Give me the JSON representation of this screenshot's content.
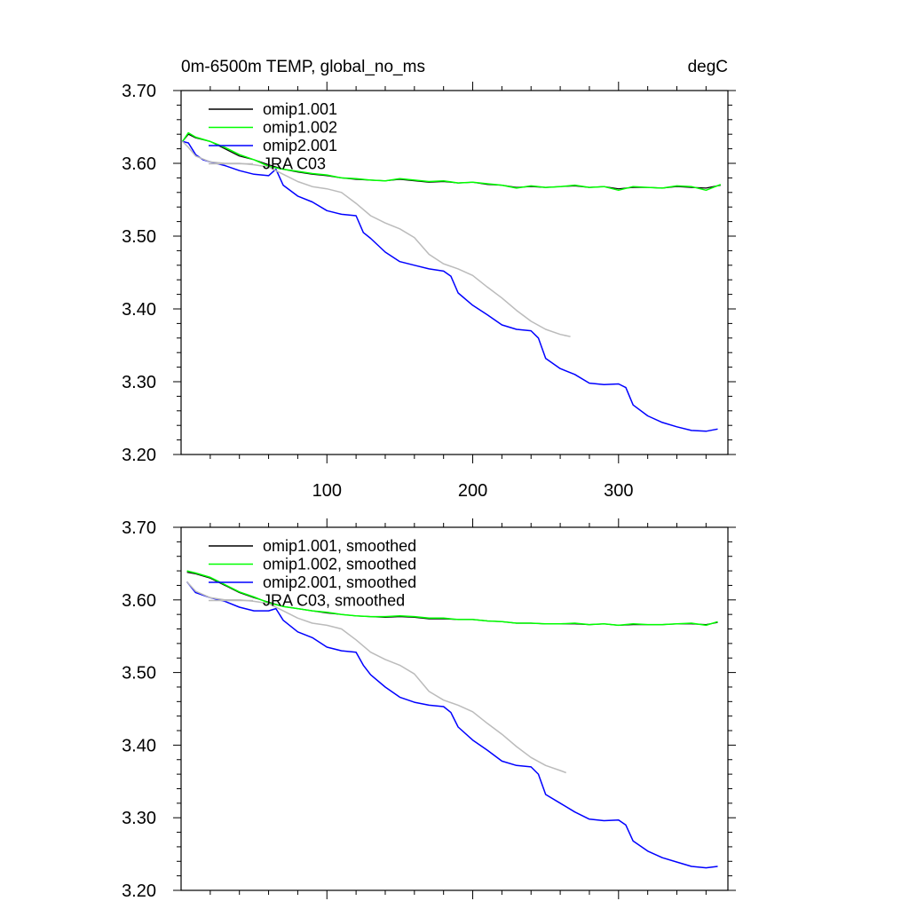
{
  "figure": {
    "title_left": "0m-6500m TEMP, global_no_ms",
    "title_right": "degC"
  },
  "chart_data": [
    {
      "type": "line",
      "title": "0m-6500m TEMP, global_no_ms",
      "units": "degC",
      "xlim": [
        0,
        375
      ],
      "ylim": [
        3.2,
        3.7
      ],
      "xticks": [
        100,
        200,
        300
      ],
      "xtick_labels": [
        "100",
        "200",
        "300"
      ],
      "yticks": [
        3.2,
        3.3,
        3.4,
        3.5,
        3.6,
        3.7
      ],
      "ytick_labels": [
        "3.20",
        "3.30",
        "3.40",
        "3.50",
        "3.60",
        "3.70"
      ],
      "legend_position": "top-left",
      "grid": false,
      "series": [
        {
          "name": "omip1.001",
          "color": "#000000",
          "x": [
            1,
            5,
            10,
            20,
            30,
            40,
            50,
            60,
            70,
            80,
            90,
            100,
            110,
            120,
            130,
            140,
            150,
            160,
            170,
            180,
            190,
            200,
            210,
            220,
            230,
            240,
            250,
            260,
            270,
            280,
            290,
            300,
            310,
            320,
            330,
            340,
            350,
            360,
            370
          ],
          "y": [
            3.63,
            3.64,
            3.635,
            3.63,
            3.62,
            3.61,
            3.605,
            3.598,
            3.592,
            3.588,
            3.585,
            3.583,
            3.58,
            3.578,
            3.577,
            3.576,
            3.578,
            3.576,
            3.574,
            3.575,
            3.573,
            3.574,
            3.571,
            3.57,
            3.567,
            3.568,
            3.567,
            3.568,
            3.569,
            3.567,
            3.568,
            3.565,
            3.567,
            3.567,
            3.566,
            3.568,
            3.567,
            3.566,
            3.57
          ]
        },
        {
          "name": "omip1.002",
          "color": "#00ff00",
          "x": [
            1,
            5,
            10,
            20,
            30,
            40,
            50,
            60,
            70,
            80,
            90,
            100,
            110,
            120,
            130,
            140,
            150,
            160,
            170,
            180,
            190,
            200,
            210,
            220,
            230,
            240,
            250,
            260,
            270,
            280,
            290,
            300,
            310,
            320,
            330,
            340,
            350,
            360,
            370
          ],
          "y": [
            3.63,
            3.642,
            3.636,
            3.63,
            3.622,
            3.612,
            3.605,
            3.596,
            3.592,
            3.589,
            3.586,
            3.584,
            3.58,
            3.579,
            3.577,
            3.576,
            3.579,
            3.577,
            3.575,
            3.576,
            3.573,
            3.574,
            3.572,
            3.57,
            3.566,
            3.569,
            3.567,
            3.568,
            3.57,
            3.567,
            3.568,
            3.563,
            3.568,
            3.567,
            3.566,
            3.569,
            3.568,
            3.563,
            3.571
          ]
        },
        {
          "name": "omip2.001",
          "color": "#0000ff",
          "x": [
            1,
            5,
            10,
            15,
            20,
            30,
            40,
            50,
            60,
            65,
            70,
            80,
            90,
            100,
            110,
            120,
            125,
            130,
            140,
            150,
            160,
            170,
            180,
            185,
            190,
            200,
            210,
            220,
            230,
            240,
            245,
            250,
            260,
            270,
            280,
            290,
            300,
            305,
            310,
            320,
            330,
            340,
            350,
            360,
            368
          ],
          "y": [
            3.63,
            3.628,
            3.612,
            3.605,
            3.602,
            3.597,
            3.59,
            3.585,
            3.583,
            3.592,
            3.57,
            3.555,
            3.547,
            3.535,
            3.53,
            3.528,
            3.505,
            3.497,
            3.478,
            3.465,
            3.46,
            3.455,
            3.452,
            3.445,
            3.422,
            3.405,
            3.392,
            3.378,
            3.372,
            3.37,
            3.36,
            3.332,
            3.318,
            3.31,
            3.298,
            3.296,
            3.297,
            3.292,
            3.268,
            3.253,
            3.244,
            3.238,
            3.233,
            3.232,
            3.235
          ]
        },
        {
          "name": "JRA C03",
          "color": "#bbbbbb",
          "x": [
            1,
            5,
            10,
            20,
            30,
            40,
            50,
            60,
            70,
            80,
            90,
            100,
            110,
            120,
            130,
            140,
            150,
            160,
            170,
            180,
            190,
            200,
            210,
            220,
            230,
            240,
            250,
            260,
            267
          ],
          "y": [
            3.63,
            3.622,
            3.61,
            3.602,
            3.6,
            3.6,
            3.598,
            3.595,
            3.585,
            3.575,
            3.568,
            3.565,
            3.56,
            3.545,
            3.528,
            3.518,
            3.51,
            3.498,
            3.475,
            3.462,
            3.455,
            3.446,
            3.43,
            3.415,
            3.398,
            3.383,
            3.372,
            3.365,
            3.362
          ]
        }
      ]
    },
    {
      "type": "line",
      "xlim": [
        0,
        375
      ],
      "ylim": [
        3.2,
        3.7
      ],
      "xticks": [
        100,
        200,
        300
      ],
      "yticks": [
        3.2,
        3.3,
        3.4,
        3.5,
        3.6,
        3.7
      ],
      "ytick_labels": [
        "3.20",
        "3.30",
        "3.40",
        "3.50",
        "3.60",
        "3.70"
      ],
      "legend_position": "top-left",
      "grid": false,
      "series": [
        {
          "name": "omip1.001, smoothed",
          "color": "#000000",
          "x": [
            4,
            10,
            20,
            30,
            40,
            50,
            60,
            70,
            80,
            90,
            100,
            110,
            120,
            130,
            140,
            150,
            160,
            170,
            180,
            190,
            200,
            210,
            220,
            230,
            240,
            250,
            260,
            270,
            280,
            290,
            300,
            310,
            320,
            330,
            340,
            350,
            360,
            368
          ],
          "y": [
            3.638,
            3.636,
            3.63,
            3.62,
            3.61,
            3.603,
            3.597,
            3.591,
            3.588,
            3.585,
            3.582,
            3.58,
            3.578,
            3.577,
            3.576,
            3.577,
            3.576,
            3.574,
            3.574,
            3.573,
            3.573,
            3.571,
            3.57,
            3.568,
            3.568,
            3.567,
            3.567,
            3.567,
            3.566,
            3.567,
            3.565,
            3.566,
            3.566,
            3.566,
            3.567,
            3.567,
            3.566,
            3.569
          ]
        },
        {
          "name": "omip1.002, smoothed",
          "color": "#00ff00",
          "x": [
            4,
            10,
            20,
            30,
            40,
            50,
            60,
            70,
            80,
            90,
            100,
            110,
            120,
            130,
            140,
            150,
            160,
            170,
            180,
            190,
            200,
            210,
            220,
            230,
            240,
            250,
            260,
            270,
            280,
            290,
            300,
            310,
            320,
            330,
            340,
            350,
            360,
            368
          ],
          "y": [
            3.64,
            3.637,
            3.631,
            3.621,
            3.611,
            3.604,
            3.596,
            3.591,
            3.588,
            3.585,
            3.583,
            3.58,
            3.578,
            3.577,
            3.577,
            3.578,
            3.577,
            3.575,
            3.575,
            3.573,
            3.573,
            3.571,
            3.57,
            3.568,
            3.568,
            3.567,
            3.567,
            3.568,
            3.566,
            3.567,
            3.565,
            3.567,
            3.566,
            3.566,
            3.567,
            3.568,
            3.565,
            3.57
          ]
        },
        {
          "name": "omip2.001, smoothed",
          "color": "#0000ff",
          "x": [
            4,
            10,
            20,
            30,
            40,
            50,
            60,
            65,
            70,
            80,
            90,
            100,
            110,
            120,
            125,
            130,
            140,
            150,
            160,
            170,
            180,
            185,
            190,
            200,
            210,
            220,
            230,
            240,
            245,
            250,
            260,
            270,
            280,
            290,
            300,
            305,
            310,
            320,
            330,
            340,
            350,
            360,
            368
          ],
          "y": [
            3.625,
            3.61,
            3.603,
            3.598,
            3.59,
            3.585,
            3.585,
            3.588,
            3.572,
            3.556,
            3.548,
            3.535,
            3.53,
            3.528,
            3.51,
            3.497,
            3.48,
            3.466,
            3.459,
            3.455,
            3.453,
            3.445,
            3.425,
            3.407,
            3.393,
            3.378,
            3.372,
            3.37,
            3.36,
            3.332,
            3.32,
            3.308,
            3.298,
            3.296,
            3.297,
            3.29,
            3.268,
            3.254,
            3.245,
            3.239,
            3.233,
            3.231,
            3.233
          ]
        },
        {
          "name": "JRA C03, smoothed",
          "color": "#bbbbbb",
          "x": [
            4,
            10,
            20,
            30,
            40,
            50,
            60,
            70,
            80,
            90,
            100,
            110,
            120,
            130,
            140,
            150,
            160,
            170,
            180,
            190,
            200,
            210,
            220,
            230,
            240,
            250,
            260,
            264
          ],
          "y": [
            3.625,
            3.612,
            3.603,
            3.6,
            3.6,
            3.598,
            3.595,
            3.585,
            3.575,
            3.568,
            3.565,
            3.56,
            3.545,
            3.528,
            3.518,
            3.51,
            3.498,
            3.474,
            3.462,
            3.455,
            3.446,
            3.43,
            3.415,
            3.398,
            3.383,
            3.372,
            3.365,
            3.362
          ]
        }
      ]
    }
  ]
}
